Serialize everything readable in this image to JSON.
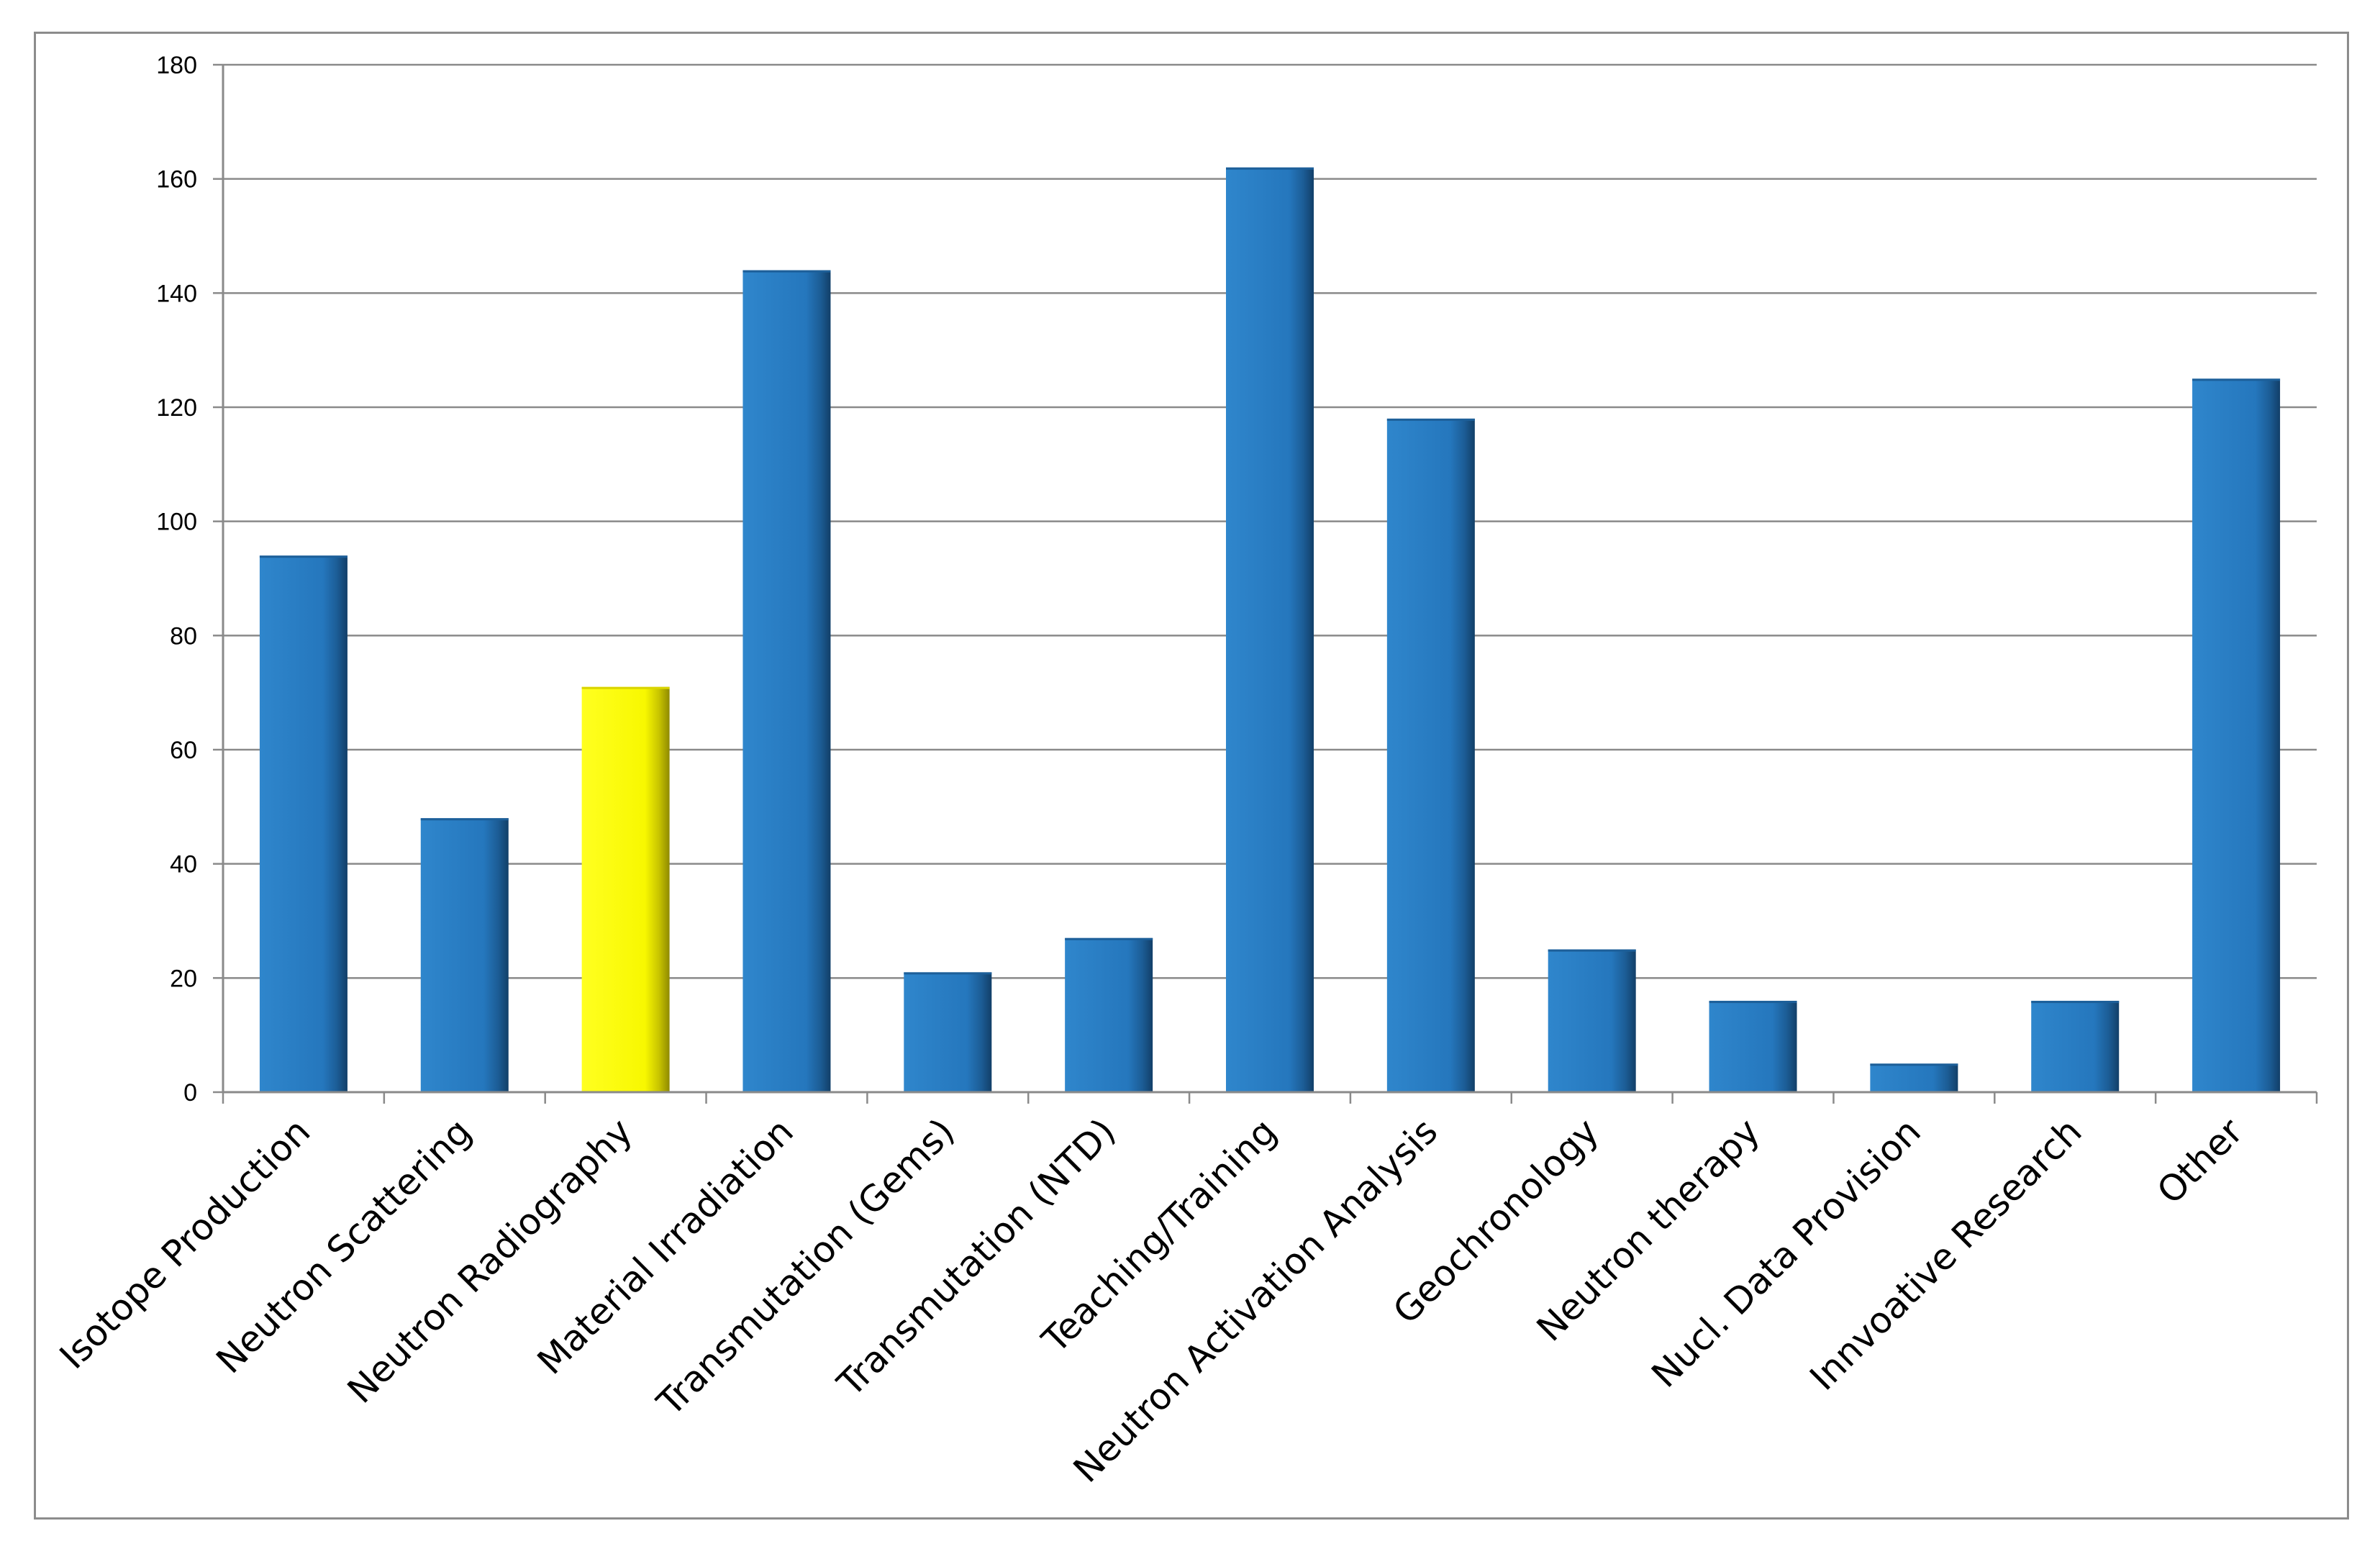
{
  "chart_data": {
    "type": "bar",
    "title": "",
    "xlabel": "",
    "ylabel": "",
    "ylim": [
      0,
      180
    ],
    "yticks": [
      0,
      20,
      40,
      60,
      80,
      100,
      120,
      140,
      160,
      180
    ],
    "grid": true,
    "legend": "none",
    "categories": [
      "Isotope Production",
      "Neutron Scattering",
      "Neutron Radiography",
      "Material Irradiation",
      "Transmutation (Gems)",
      "Transmutation (NTD)",
      "Teaching/Training",
      "Neutron Activation Analysis",
      "Geochronology",
      "Neutron therapy",
      "Nucl. Data Provision",
      "Innvoative Research",
      "Other"
    ],
    "values": [
      94,
      48,
      71,
      144,
      21,
      27,
      162,
      118,
      25,
      16,
      5,
      16,
      125
    ],
    "bar_color": "#2a7cc0",
    "highlight_color": "#ffff00",
    "highlight_category": "Neutron Radiography"
  }
}
